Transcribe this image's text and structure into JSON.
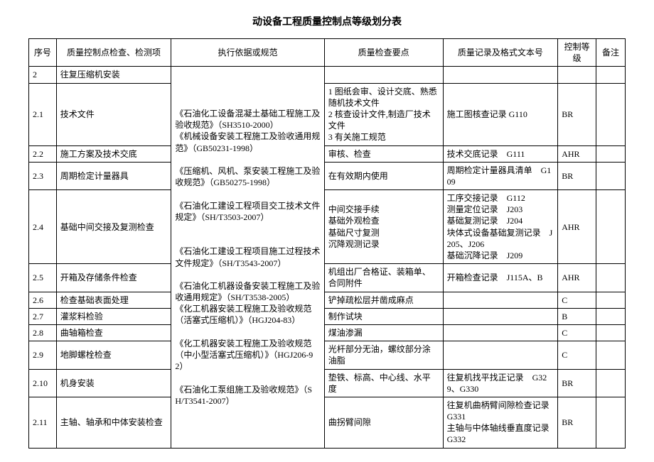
{
  "title": "动设备工程质量控制点等级划分表",
  "headers": {
    "seq": "序号",
    "item": "质量控制点检查、检测项",
    "basis": "执行依据或规范",
    "points": "质量检查要点",
    "record": "质量记录及格式文本号",
    "level": "控制等级",
    "note": "备注"
  },
  "basis_text": "《石油化工设备混凝土基础工程施工及验收规范》（SH3510-2000）\n《机械设备安装工程施工及验收通用规范》（GB50231-1998）\n\n《压缩机、风机、泵安装工程施工及验收规范》（GB50275-1998）\n\n《石油化工建设工程项目交工技术文件规定》（SH/T3503-2007）\n\n\n《石油化工建设工程项目施工过程技术文件规定》（SH/T3543-2007）\n\n《石油化工机器设备安装工程施工及验收通用规定》（SH/T3538-2005）\n《化工机器安装工程施工及验收规范（活塞式压缩机）》（HGJ204-83）\n\n《化工机器安装工程施工及验收规范（中小型活塞式压缩机）》（HGJ206-92）\n\n《石油化工泵组施工及验收规范》（SH/T3541-2007）",
  "rows": [
    {
      "seq": "2",
      "item": "往复压缩机安装",
      "points": "",
      "record": "",
      "level": "",
      "note": ""
    },
    {
      "seq": "2.1",
      "item": "技术文件",
      "points": "1 图纸会审、设计交底、熟悉随机技术文件\n2 核查设计文件,制造厂技术文件\n3 有关施工规范",
      "record": "施工图核查记录 G110",
      "level": "BR",
      "note": ""
    },
    {
      "seq": "2.2",
      "item": "施工方案及技术交底",
      "points": "审核、检查",
      "record": "技术交底记录　G111",
      "level": "AHR",
      "note": ""
    },
    {
      "seq": "2.3",
      "item": "周期检定计量器具",
      "points": "在有效期内使用",
      "record": "周期检定计量器具清单　G109",
      "level": "BR",
      "note": ""
    },
    {
      "seq": "2.4",
      "item": "基础中间交接及复测检查",
      "points": "中间交接手续\n基础外观检查\n基础尺寸复测\n沉降观测记录",
      "record": "工序交接记录　G112\n测量定位记录　J203\n基础复测记录　J204\n块体式设备基础复测记录　J205、J206\n基础沉降记录　J209",
      "level": "AHR",
      "note": ""
    },
    {
      "seq": "2.5",
      "item": "开箱及存储条件检查",
      "points": "机组出厂合格证、装箱单、合同附件",
      "record": "开箱检查记录　J115A、B",
      "level": "AHR",
      "note": ""
    },
    {
      "seq": "2.6",
      "item": "检查基础表面处理",
      "points": "铲掉疏松层并凿成麻点",
      "record": "",
      "level": "C",
      "note": ""
    },
    {
      "seq": "2.7",
      "item": "灌浆料检验",
      "points": "制作试块",
      "record": "",
      "level": "B",
      "note": ""
    },
    {
      "seq": "2.8",
      "item": "曲轴箱检查",
      "points": "煤油渗漏",
      "record": "",
      "level": "C",
      "note": ""
    },
    {
      "seq": "2.9",
      "item": "地脚螺栓检查",
      "points": "光杆部分无油，螺纹部分涂油脂",
      "record": "",
      "level": "C",
      "note": ""
    },
    {
      "seq": "2.10",
      "item": "机身安装",
      "points": "垫铁、标高、中心线、水平度",
      "record": "往复机找平找正记录　G329、G330",
      "level": "BR",
      "note": ""
    },
    {
      "seq": "2.11",
      "item": "主轴、轴承和中体安装检查",
      "points": "曲拐臂间隙",
      "record": "往复机曲柄臂间隙检查记录 G331\n主轴与中体轴线垂直度记录 G332",
      "level": "BR",
      "note": ""
    }
  ]
}
